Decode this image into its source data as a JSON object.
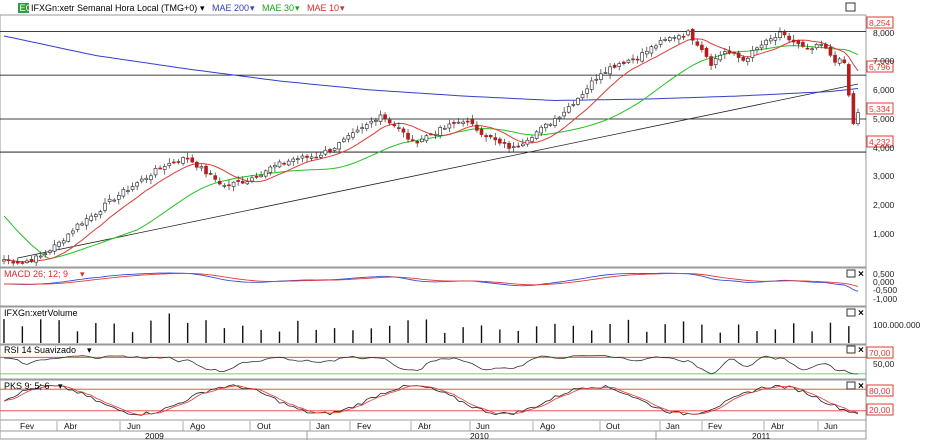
{
  "colors": {
    "up": "#2e7d32",
    "down": "#b71c1c",
    "mae200": "#3340c8",
    "mae30": "#22c222",
    "mae10": "#e23b3b",
    "macd": "#3b4fd6",
    "signal": "#e23b3b",
    "hline": "#000000",
    "badge": "#e53935"
  },
  "header": {
    "logo": "EG",
    "ticker": "IFXGn:xetr Semanal Hora Local (TMG+0)",
    "ind1": "MAE 200",
    "ind2": "MAE 30",
    "ind3": "MAE 10"
  },
  "price_panel": {
    "levels": [
      "8,254",
      "6,796",
      "5,334",
      "4,232"
    ],
    "ticks": [
      "8,000",
      "7,000",
      "6,000",
      "5,000",
      "4,000",
      "3,000",
      "2,000",
      "1,000"
    ]
  },
  "macd_panel": {
    "title": "MACD 26; 12; 9",
    "ticks": [
      "0,500",
      "0,000",
      "-0,500",
      "-1,000"
    ]
  },
  "volume_panel": {
    "title": "IFXGn:xetrVolume",
    "ticks": [
      "100.000.000"
    ]
  },
  "rsi_panel": {
    "title": "RSI 14 Suavizado",
    "ticks": [
      "70,00",
      "50,00"
    ]
  },
  "pks_panel": {
    "title": "PKS 9; 5; 6",
    "ticks": [
      "80,00",
      "20,00"
    ]
  },
  "xaxis": {
    "months": [
      "Fev",
      "Abr",
      "Jun",
      "Ago",
      "Out",
      "Jan",
      "Fev",
      "Abr",
      "Jun",
      "Ago",
      "Out",
      "Jan",
      "Fev",
      "Abr",
      "Jun"
    ],
    "years": [
      "2009",
      "2010",
      "2011"
    ]
  },
  "chart_data": {
    "type": "candlestick",
    "anchors_close": [
      [
        0,
        0.65
      ],
      [
        4,
        0.55
      ],
      [
        8,
        0.75
      ],
      [
        12,
        1.2
      ],
      [
        16,
        1.8
      ],
      [
        20,
        2.2
      ],
      [
        24,
        2.7
      ],
      [
        30,
        3.3
      ],
      [
        35,
        3.8
      ],
      [
        40,
        4.05
      ],
      [
        44,
        3.55
      ],
      [
        48,
        3.1
      ],
      [
        53,
        3.3
      ],
      [
        58,
        3.7
      ],
      [
        63,
        4.0
      ],
      [
        68,
        4.1
      ],
      [
        72,
        4.4
      ],
      [
        78,
        5.0
      ],
      [
        82,
        5.5
      ],
      [
        86,
        5.0
      ],
      [
        89,
        4.55
      ],
      [
        94,
        4.9
      ],
      [
        100,
        5.3
      ],
      [
        104,
        4.9
      ],
      [
        108,
        4.5
      ],
      [
        111,
        4.35
      ],
      [
        114,
        4.7
      ],
      [
        118,
        5.1
      ],
      [
        122,
        5.6
      ],
      [
        126,
        6.2
      ],
      [
        130,
        6.9
      ],
      [
        134,
        7.2
      ],
      [
        138,
        7.4
      ],
      [
        142,
        7.8
      ],
      [
        146,
        8.1
      ],
      [
        149,
        8.2
      ],
      [
        152,
        7.7
      ],
      [
        154,
        7.2
      ],
      [
        157,
        7.6
      ],
      [
        161,
        7.3
      ],
      [
        165,
        7.8
      ],
      [
        169,
        8.15
      ],
      [
        172,
        7.9
      ],
      [
        175,
        7.6
      ],
      [
        178,
        7.8
      ],
      [
        181,
        7.3
      ],
      [
        183,
        7.2
      ],
      [
        184,
        6.1
      ],
      [
        185,
        5.2
      ],
      [
        186,
        5.5
      ]
    ],
    "mae200_anchors": [
      [
        0,
        8.1
      ],
      [
        20,
        7.45
      ],
      [
        40,
        7.0
      ],
      [
        60,
        6.6
      ],
      [
        80,
        6.3
      ],
      [
        100,
        6.1
      ],
      [
        120,
        5.95
      ],
      [
        140,
        6.0
      ],
      [
        160,
        6.1
      ],
      [
        180,
        6.25
      ],
      [
        186,
        6.35
      ]
    ],
    "trendline": {
      "from": [
        3,
        0.7
      ],
      "to": [
        186,
        6.5
      ]
    },
    "price_ylim": [
      0.4,
      8.8
    ]
  }
}
